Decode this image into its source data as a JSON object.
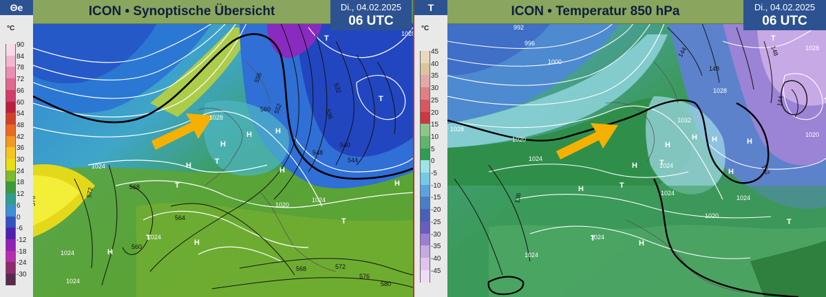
{
  "left": {
    "legend_title": "Θe",
    "legend_unit": "°C",
    "legend_labels": [
      "90",
      "84",
      "78",
      "72",
      "66",
      "60",
      "54",
      "48",
      "42",
      "36",
      "30",
      "24",
      "18",
      "12",
      "6",
      "0",
      "-6",
      "-12",
      "-18",
      "-24",
      "-30"
    ],
    "legend_colors": [
      "#f6dbe8",
      "#f1b7cd",
      "#e98fb1",
      "#e0678f",
      "#cf3f6a",
      "#bb1f3b",
      "#d1402a",
      "#e86a24",
      "#f29a24",
      "#f5c61f",
      "#e9de14",
      "#7dbb2a",
      "#3a9a3c",
      "#2f9e8e",
      "#3d8fd6",
      "#3153c1",
      "#4f1fb0",
      "#9320b8",
      "#b62eac",
      "#8c2c6b",
      "#5a2a4e"
    ],
    "title": "ICON • Synoptische Übersicht",
    "date": "Di., 04.02.2025",
    "time": "06 UTC",
    "map_labels": {
      "h1": "H",
      "h2": "H",
      "h3": "H",
      "h4": "H",
      "h5": "H",
      "h6": "H",
      "h7": "H",
      "t1": "T",
      "t2": "T",
      "t3": "T",
      "t4": "T",
      "t5": "T",
      "t6": "T",
      "p1028": "1028",
      "p1024a": "1024",
      "p1024b": "1024",
      "p1020": "1020",
      "p1024c": "1024",
      "p1024d": "1024",
      "p1024e": "1024",
      "p1028b": "1028",
      "z556": "556",
      "z560a": "560",
      "z552": "552",
      "z548": "548",
      "z544": "544",
      "z540": "540",
      "z536": "536",
      "z532": "532",
      "z576": "576",
      "z572": "572",
      "z568": "568",
      "z564": "564",
      "z560b": "560",
      "z568b": "568",
      "z572b": "572",
      "z576b": "576",
      "z580": "580"
    }
  },
  "right": {
    "legend_title": "T",
    "legend_unit": "°C",
    "legend_labels": [
      "45",
      "40",
      "35",
      "30",
      "25",
      "20",
      "15",
      "10",
      "5",
      "0",
      "-5",
      "-10",
      "-15",
      "-20",
      "-25",
      "-30",
      "-35",
      "-40",
      "-45"
    ],
    "legend_colors": [
      "#e8d9bc",
      "#dcc49c",
      "#e3a9a9",
      "#e07f86",
      "#d95860",
      "#c93944",
      "#8cc78a",
      "#5db76a",
      "#2f9b53",
      "#9ee3e6",
      "#75c9e6",
      "#5ba3dc",
      "#4a7fc8",
      "#4a5fb8",
      "#6a5cc2",
      "#9b7fd3",
      "#c6a8e3",
      "#e0c4ef",
      "#eedcf6"
    ],
    "title": "ICON • Temperatur 850 hPa",
    "date": "Di., 04.02.2025",
    "time": "06 UTC",
    "map_labels": {
      "p992": "992",
      "p996": "996",
      "p1000": "1000",
      "p1028a": "1028",
      "p1020a": "1020",
      "p1024a": "1024",
      "p1032": "1032",
      "p1028b": "1028",
      "p1028c": "1028",
      "p1024b": "1024",
      "p1024c": "1024",
      "p1024d": "1024",
      "p1020b": "1020",
      "p1024e": "1024",
      "p1020c": "1020",
      "p1024f": "1024",
      "i144a": "144",
      "i148a": "148",
      "i148b": "148",
      "i144b": "144",
      "i152": "152",
      "i136": "136",
      "h1": "H",
      "h2": "H",
      "h3": "H",
      "h4": "H",
      "h5": "H",
      "h6": "H",
      "h7": "H",
      "h8": "H",
      "h9": "H",
      "t1": "T",
      "t2": "T",
      "t3": "T",
      "t4": "T",
      "t5": "T",
      "t6": "T"
    }
  }
}
